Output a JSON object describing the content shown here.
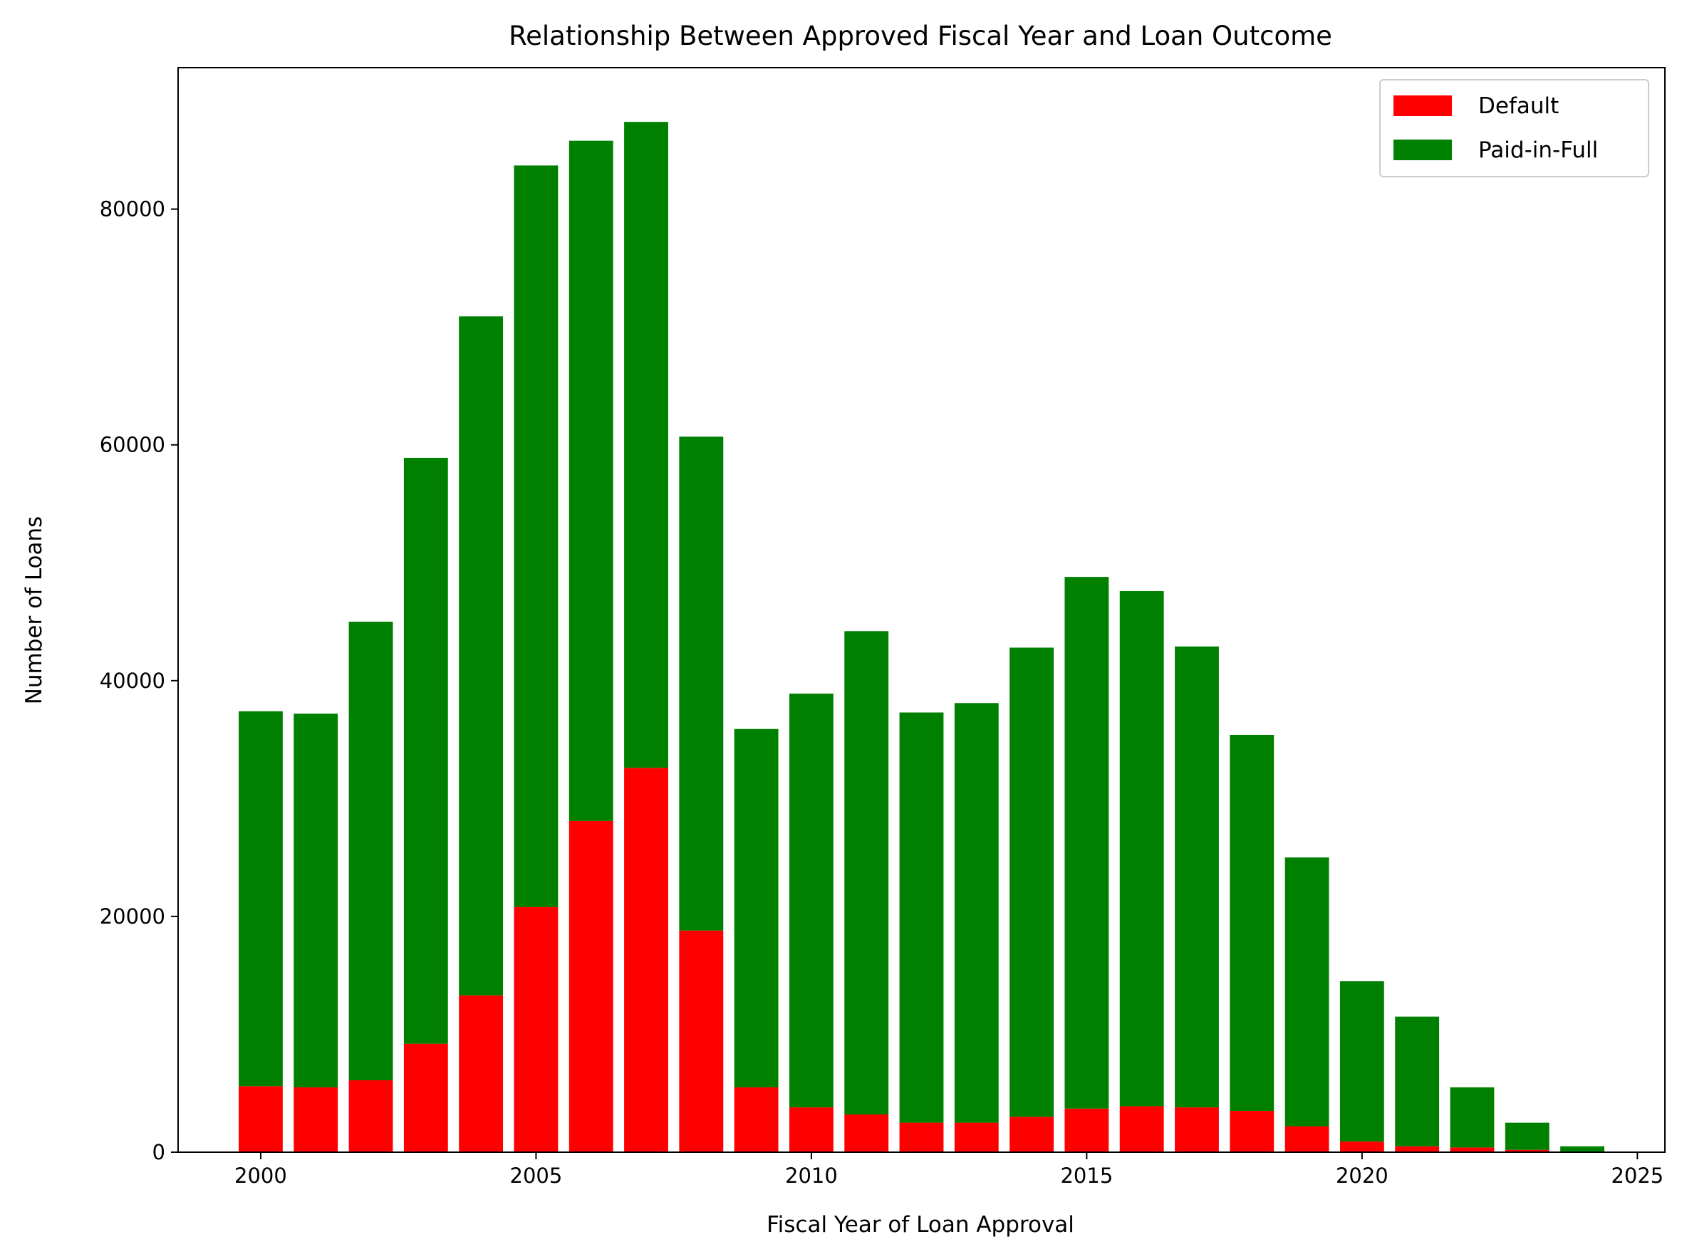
{
  "chart_data": {
    "type": "bar",
    "stacked": true,
    "title": "Relationship Between Approved Fiscal Year and Loan Outcome",
    "xlabel": "Fiscal Year of Loan Approval",
    "ylabel": "Number of Loans",
    "xlim": [
      1998.5,
      2025.5
    ],
    "ylim": [
      0,
      92000
    ],
    "x_ticks": [
      2000,
      2005,
      2010,
      2015,
      2020,
      2025
    ],
    "y_ticks": [
      0,
      20000,
      40000,
      60000,
      80000
    ],
    "grid": false,
    "legend_position": "top-right",
    "x": [
      2000,
      2001,
      2002,
      2003,
      2004,
      2005,
      2006,
      2007,
      2008,
      2009,
      2010,
      2011,
      2012,
      2013,
      2014,
      2015,
      2016,
      2017,
      2018,
      2019,
      2020,
      2021,
      2022,
      2023,
      2024
    ],
    "series": [
      {
        "name": "Default",
        "color": "#ff0000",
        "values": [
          5600,
          5500,
          6100,
          9200,
          13300,
          20800,
          28100,
          32600,
          18800,
          5500,
          3800,
          3200,
          2500,
          2500,
          3000,
          3700,
          3900,
          3800,
          3500,
          2200,
          900,
          500,
          400,
          200,
          0
        ]
      },
      {
        "name": "Paid-in-Full",
        "color": "#008000",
        "values": [
          31800,
          31700,
          38900,
          49700,
          57600,
          62900,
          57700,
          54800,
          41900,
          30400,
          35100,
          41000,
          34800,
          35600,
          39800,
          45100,
          43700,
          39100,
          31900,
          22800,
          13600,
          11000,
          5100,
          2300,
          500
        ]
      }
    ]
  }
}
